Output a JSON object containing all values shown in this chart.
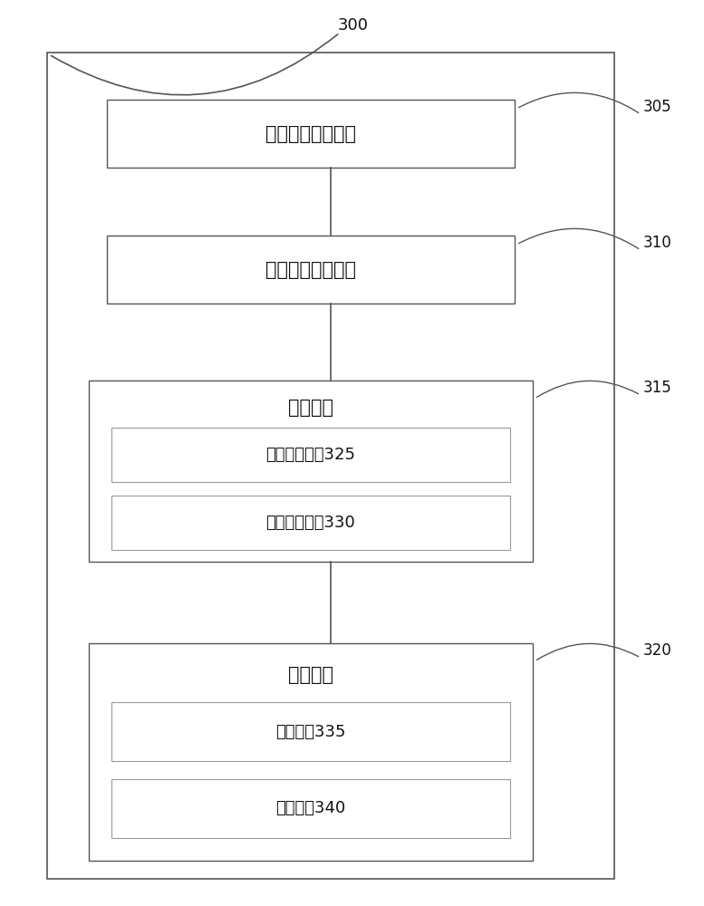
{
  "bg_color": "#ffffff",
  "line_color": "#555555",
  "text_color": "#111111",
  "label_300": "300",
  "label_305": "305",
  "label_310": "310",
  "label_315": "315",
  "label_320": "320",
  "box1_label": "违章信息获取模块",
  "box2_label": "位置信息获取模块",
  "box3_title": "判断模块",
  "box3_sub1": "第一判断单元325",
  "box3_sub2": "第二判断单元330",
  "box4_title": "编辑模块",
  "box4_sub1": "识别单元335",
  "box4_sub2": "编辑单元340",
  "font_size_main": 15,
  "font_size_sub": 13,
  "font_size_label": 12
}
